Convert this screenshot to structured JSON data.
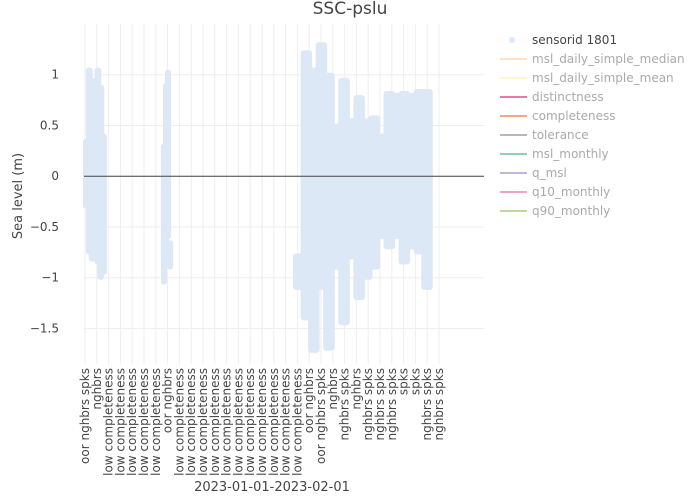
{
  "chart_data": {
    "type": "scatter",
    "title": "SSC-pslu",
    "xlabel": "2023-01-01-2023-02-01",
    "ylabel": "Sea level (m)",
    "ylim": [
      -1.85,
      1.5
    ],
    "yticks": [
      1,
      0.5,
      0,
      -0.5,
      -1,
      -1.5
    ],
    "ytick_labels": [
      "1",
      "0.5",
      "0",
      "−0.5",
      "−1",
      "−1.5"
    ],
    "grid": true,
    "zero_line": true,
    "legend_position": "right",
    "point_color": "#dce8f6",
    "x_tick_labels": [
      "oor nghbrs spks",
      "nghbrs",
      "low completeness",
      "low completeness",
      "low completeness",
      "low completeness",
      "low completeness",
      "oor nghbrs",
      "low completeness",
      "low completeness",
      "low completeness",
      "low completeness",
      "low completeness",
      "low completeness",
      "low completeness",
      "low completeness",
      "low completeness",
      "low completeness",
      "low completeness",
      "oor nghbrs",
      "oor nghbrs spks",
      "nghbrs",
      "nghbrs spks",
      "nghbrs",
      "nghbrs spks",
      "nghbrs spks",
      "nghbrs spks",
      "spks",
      "spks",
      "nghbrs spks",
      "nghbrs spks"
    ],
    "series": [
      {
        "name": "sensorid 1801",
        "segments": [
          {
            "x_start": 1.0,
            "x_end": 2.7,
            "spans": [
              [
                -0.3,
                0.35
              ],
              [
                -0.75,
                1.05
              ],
              [
                -0.82,
                0.95
              ],
              [
                -0.45,
                0.8
              ],
              [
                -0.85,
                1.05
              ],
              [
                -1.0,
                0.88
              ],
              [
                -0.95,
                0.4
              ]
            ]
          },
          {
            "x_start": 7.6,
            "x_end": 8.3,
            "spans": [
              [
                -1.05,
                0.3
              ],
              [
                -0.75,
                0.9
              ],
              [
                -0.6,
                1.03
              ],
              [
                -0.9,
                -0.65
              ]
            ]
          },
          {
            "x_start": 18.8,
            "x_end": 30.3,
            "spans": [
              [
                -1.1,
                -0.78
              ],
              [
                -1.4,
                1.22
              ],
              [
                -1.72,
                1.05
              ],
              [
                -1.1,
                1.3
              ],
              [
                -1.7,
                1.0
              ],
              [
                -0.9,
                0.5
              ],
              [
                -1.45,
                0.95
              ],
              [
                -0.8,
                0.55
              ],
              [
                -1.2,
                0.78
              ],
              [
                -1.0,
                0.55
              ],
              [
                -0.9,
                0.58
              ],
              [
                -0.6,
                0.4
              ],
              [
                -0.7,
                0.82
              ],
              [
                -0.6,
                0.8
              ],
              [
                -0.85,
                0.82
              ],
              [
                -0.7,
                0.8
              ],
              [
                -0.75,
                0.84
              ],
              [
                -1.1,
                0.84
              ]
            ]
          }
        ]
      }
    ],
    "legend": [
      {
        "name": "sensorid 1801",
        "color": "#dce8f6",
        "marker": "point",
        "active": true
      },
      {
        "name": "msl_daily_simple_median",
        "color": "#fde3c4",
        "marker": "line",
        "active": false
      },
      {
        "name": "msl_daily_simple_mean",
        "color": "#fff6c9",
        "marker": "line",
        "active": false
      },
      {
        "name": "distinctness",
        "color": "#e879a9",
        "marker": "line",
        "active": false
      },
      {
        "name": "completeness",
        "color": "#f0a98b",
        "marker": "line",
        "active": false
      },
      {
        "name": "tolerance",
        "color": "#b8b8b8",
        "marker": "line",
        "active": false
      },
      {
        "name": "msl_monthly",
        "color": "#92d0b4",
        "marker": "line",
        "active": false
      },
      {
        "name": "q_msl",
        "color": "#c3b6dc",
        "marker": "line",
        "active": false
      },
      {
        "name": "q10_monthly",
        "color": "#f0a3c8",
        "marker": "line",
        "active": false
      },
      {
        "name": "q90_monthly",
        "color": "#b9dc99",
        "marker": "line",
        "active": false
      }
    ]
  }
}
